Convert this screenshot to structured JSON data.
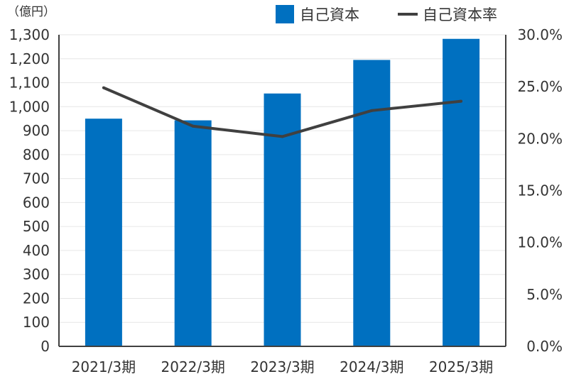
{
  "chart_data": {
    "type": "bar",
    "unit_label": "（億円）",
    "categories": [
      "2021/3期",
      "2022/3期",
      "2023/3期",
      "2024/3期",
      "2025/3期"
    ],
    "series": [
      {
        "name": "自己資本",
        "type": "bar",
        "axis": "left",
        "color": "#0070c0",
        "values": [
          950,
          943,
          1055,
          1195,
          1283
        ]
      },
      {
        "name": "自己資本率",
        "type": "line",
        "axis": "right",
        "color": "#404040",
        "values": [
          24.9,
          21.2,
          20.2,
          22.7,
          23.6
        ]
      }
    ],
    "y_left": {
      "ylim": [
        0,
        1300
      ],
      "ticks": [
        "0",
        "100",
        "200",
        "300",
        "400",
        "500",
        "600",
        "700",
        "800",
        "900",
        "1,000",
        "1,100",
        "1,200",
        "1,300"
      ]
    },
    "y_right": {
      "ylim": [
        0,
        30
      ],
      "ticks": [
        "0.0%",
        "5.0%",
        "10.0%",
        "15.0%",
        "20.0%",
        "25.0%",
        "30.0%"
      ]
    },
    "grid": true,
    "legend_position": "top-right"
  }
}
